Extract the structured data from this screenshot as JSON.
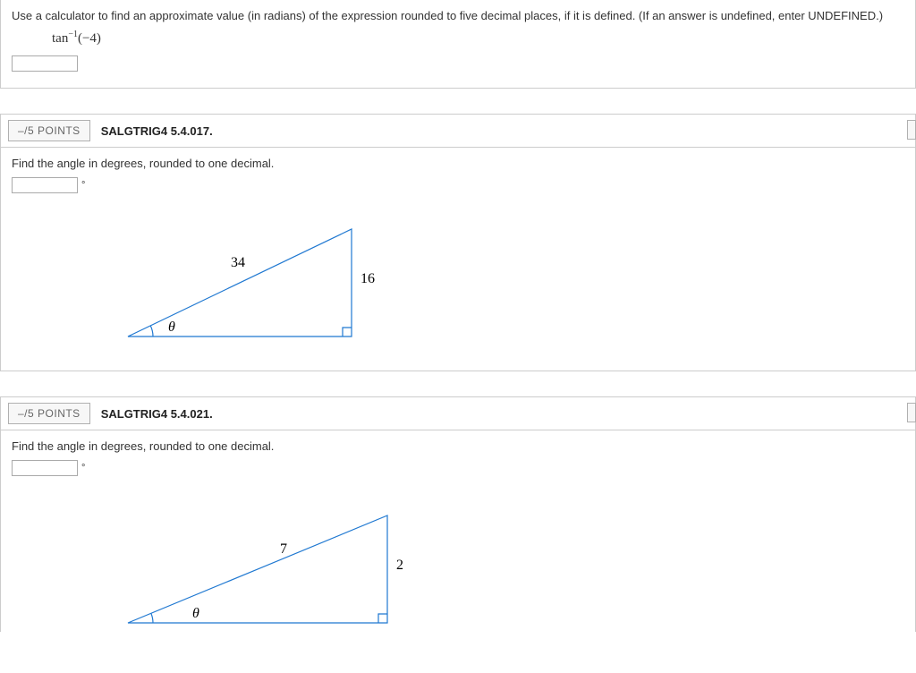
{
  "q1": {
    "prompt": "Use a calculator to find an approximate value (in radians) of the expression rounded to five decimal places, if it is defined. (If an answer is undefined, enter UNDEFINED.)",
    "expr_func": "tan",
    "expr_sup": "−1",
    "expr_arg": "(−4)"
  },
  "q2": {
    "points": "–/5 POINTS",
    "code": "SALGTRIG4 5.4.017.",
    "prompt": "Find the angle in degrees, rounded to one decimal.",
    "deg_sym": "°",
    "triangle": {
      "hypotenuse_label": "34",
      "side_label": "16",
      "angle_label": "θ",
      "stroke_color": "#1f78d1",
      "vertices": {
        "A": [
          10,
          130
        ],
        "B": [
          260,
          130
        ],
        "C": [
          260,
          10
        ]
      },
      "label_positions": {
        "hypotenuse": [
          125,
          52
        ],
        "side": [
          270,
          70
        ],
        "theta": [
          55,
          124
        ]
      }
    }
  },
  "q3": {
    "points": "–/5 POINTS",
    "code": "SALGTRIG4 5.4.021.",
    "prompt": "Find the angle in degrees, rounded to one decimal.",
    "deg_sym": "°",
    "triangle": {
      "hypotenuse_label": "7",
      "side_label": "2",
      "angle_label": "θ",
      "stroke_color": "#1f78d1",
      "vertices": {
        "A": [
          10,
          130
        ],
        "B": [
          300,
          130
        ],
        "C": [
          300,
          10
        ]
      },
      "label_positions": {
        "hypotenuse": [
          180,
          52
        ],
        "side": [
          310,
          70
        ],
        "theta": [
          82,
          124
        ]
      }
    }
  }
}
